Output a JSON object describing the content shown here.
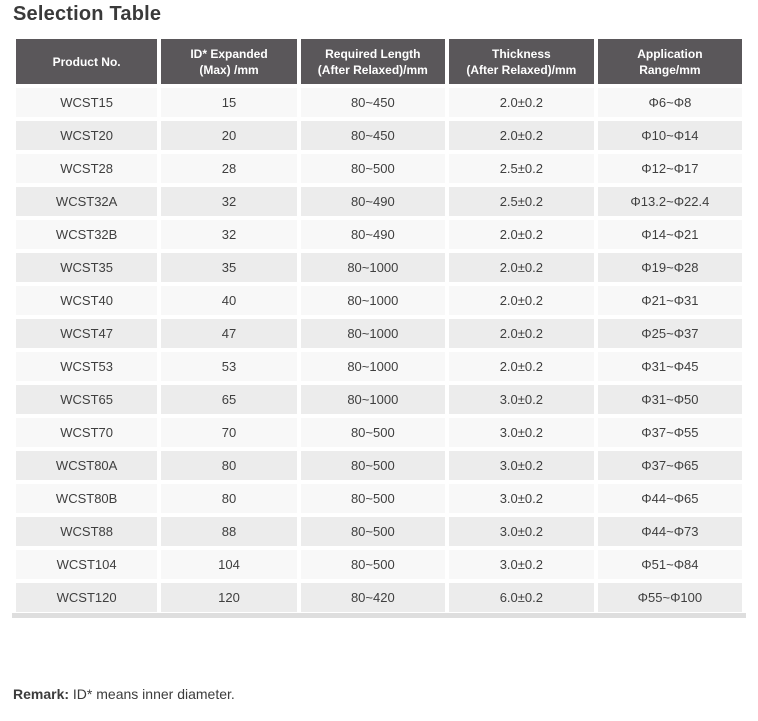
{
  "page_title": "Selection Table",
  "table": {
    "columns": [
      {
        "key": "product_no",
        "label": "Product No."
      },
      {
        "key": "id_expanded",
        "label": "ID* Expanded\n(Max) /mm"
      },
      {
        "key": "required_length",
        "label": "Required Length\n(After Relaxed)/mm"
      },
      {
        "key": "thickness",
        "label": "Thickness\n(After Relaxed)/mm"
      },
      {
        "key": "application_range",
        "label": "Application\nRange/mm"
      }
    ],
    "rows": [
      {
        "product_no": "WCST15",
        "id_expanded": "15",
        "required_length": "80~450",
        "thickness": "2.0±0.2",
        "application_range": "Φ6~Φ8"
      },
      {
        "product_no": "WCST20",
        "id_expanded": "20",
        "required_length": "80~450",
        "thickness": "2.0±0.2",
        "application_range": "Φ10~Φ14"
      },
      {
        "product_no": "WCST28",
        "id_expanded": "28",
        "required_length": "80~500",
        "thickness": "2.5±0.2",
        "application_range": "Φ12~Φ17"
      },
      {
        "product_no": "WCST32A",
        "id_expanded": "32",
        "required_length": "80~490",
        "thickness": "2.5±0.2",
        "application_range": "Φ13.2~Φ22.4"
      },
      {
        "product_no": "WCST32B",
        "id_expanded": "32",
        "required_length": "80~490",
        "thickness": "2.0±0.2",
        "application_range": "Φ14~Φ21"
      },
      {
        "product_no": "WCST35",
        "id_expanded": "35",
        "required_length": "80~1000",
        "thickness": "2.0±0.2",
        "application_range": "Φ19~Φ28"
      },
      {
        "product_no": "WCST40",
        "id_expanded": "40",
        "required_length": "80~1000",
        "thickness": "2.0±0.2",
        "application_range": "Φ21~Φ31"
      },
      {
        "product_no": "WCST47",
        "id_expanded": "47",
        "required_length": "80~1000",
        "thickness": "2.0±0.2",
        "application_range": "Φ25~Φ37"
      },
      {
        "product_no": "WCST53",
        "id_expanded": "53",
        "required_length": "80~1000",
        "thickness": "2.0±0.2",
        "application_range": "Φ31~Φ45"
      },
      {
        "product_no": "WCST65",
        "id_expanded": "65",
        "required_length": "80~1000",
        "thickness": "3.0±0.2",
        "application_range": "Φ31~Φ50"
      },
      {
        "product_no": "WCST70",
        "id_expanded": "70",
        "required_length": "80~500",
        "thickness": "3.0±0.2",
        "application_range": "Φ37~Φ55"
      },
      {
        "product_no": "WCST80A",
        "id_expanded": "80",
        "required_length": "80~500",
        "thickness": "3.0±0.2",
        "application_range": "Φ37~Φ65"
      },
      {
        "product_no": "WCST80B",
        "id_expanded": "80",
        "required_length": "80~500",
        "thickness": "3.0±0.2",
        "application_range": "Φ44~Φ65"
      },
      {
        "product_no": "WCST88",
        "id_expanded": "88",
        "required_length": "80~500",
        "thickness": "3.0±0.2",
        "application_range": "Φ44~Φ73"
      },
      {
        "product_no": "WCST104",
        "id_expanded": "104",
        "required_length": "80~500",
        "thickness": "3.0±0.2",
        "application_range": "Φ51~Φ84"
      },
      {
        "product_no": "WCST120",
        "id_expanded": "120",
        "required_length": "80~420",
        "thickness": "6.0±0.2",
        "application_range": "Φ55~Φ100"
      }
    ]
  },
  "remark": {
    "label": "Remark:",
    "text": " ID* means inner diameter."
  },
  "colors": {
    "header_bg": "#5a575a",
    "header_text": "#ffffff",
    "row_odd_bg": "#f8f8f8",
    "row_even_bg": "#ececec",
    "body_text": "#3f3f3f",
    "title_text": "#3a3a3a",
    "bottom_border": "#dedede"
  }
}
